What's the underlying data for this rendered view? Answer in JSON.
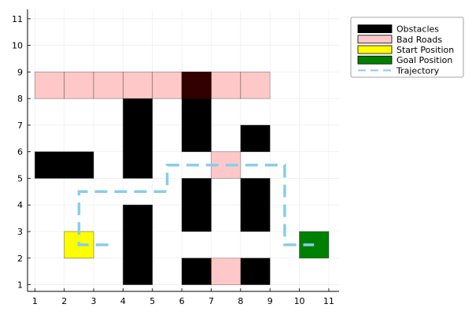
{
  "chart_data": {
    "type": "grid-map",
    "title": "",
    "xlabel": "",
    "ylabel": "",
    "xlim": [
      0.75,
      11.35
    ],
    "ylim": [
      0.75,
      11.35
    ],
    "xticks": [
      1,
      2,
      3,
      4,
      5,
      6,
      7,
      8,
      9,
      10,
      11
    ],
    "yticks": [
      1,
      2,
      3,
      4,
      5,
      6,
      7,
      8,
      9,
      10,
      11
    ],
    "grid": true,
    "legend_position": "top-right",
    "legend": [
      {
        "label": "Obstacles",
        "color": "#000000",
        "kind": "box"
      },
      {
        "label": "Bad Roads",
        "color": "#ffc8c8",
        "kind": "box"
      },
      {
        "label": "Start Position",
        "color": "#ffff00",
        "kind": "box"
      },
      {
        "label": "Goal Position",
        "color": "#008000",
        "kind": "box"
      },
      {
        "label": "Trajectory",
        "color": "#87ceeb",
        "kind": "dash"
      }
    ],
    "colors": {
      "obstacle": "#000000",
      "bad_road": "#ffc8c8",
      "overlap": "#330000",
      "start": "#ffff00",
      "goal": "#008000",
      "trajectory": "#87ceeb"
    },
    "obstacles": [
      {
        "x0": 1,
        "y0": 5,
        "x1": 3,
        "y1": 6
      },
      {
        "x0": 4,
        "y0": 5,
        "x1": 5,
        "y1": 8
      },
      {
        "x0": 4,
        "y0": 1,
        "x1": 5,
        "y1": 4
      },
      {
        "x0": 6,
        "y0": 6,
        "x1": 7,
        "y1": 9
      },
      {
        "x0": 6,
        "y0": 3,
        "x1": 7,
        "y1": 5
      },
      {
        "x0": 6,
        "y0": 1,
        "x1": 7,
        "y1": 2
      },
      {
        "x0": 8,
        "y0": 6,
        "x1": 9,
        "y1": 7
      },
      {
        "x0": 8,
        "y0": 3,
        "x1": 9,
        "y1": 5
      },
      {
        "x0": 8,
        "y0": 1,
        "x1": 9,
        "y1": 2
      }
    ],
    "bad_roads": [
      {
        "x0": 1,
        "y0": 8,
        "x1": 2,
        "y1": 9
      },
      {
        "x0": 2,
        "y0": 8,
        "x1": 3,
        "y1": 9
      },
      {
        "x0": 3,
        "y0": 8,
        "x1": 4,
        "y1": 9
      },
      {
        "x0": 4,
        "y0": 8,
        "x1": 5,
        "y1": 9
      },
      {
        "x0": 5,
        "y0": 8,
        "x1": 6,
        "y1": 9
      },
      {
        "x0": 6,
        "y0": 8,
        "x1": 7,
        "y1": 9
      },
      {
        "x0": 7,
        "y0": 8,
        "x1": 8,
        "y1": 9
      },
      {
        "x0": 8,
        "y0": 8,
        "x1": 9,
        "y1": 9
      },
      {
        "x0": 7,
        "y0": 5,
        "x1": 8,
        "y1": 6
      },
      {
        "x0": 7,
        "y0": 1,
        "x1": 8,
        "y1": 2
      }
    ],
    "start": {
      "x0": 2,
      "y0": 2,
      "x1": 3,
      "y1": 3
    },
    "goal": {
      "x0": 10,
      "y0": 2,
      "x1": 11,
      "y1": 3
    },
    "trajectory": {
      "x": [
        3.5,
        2.5,
        2.5,
        5.5,
        5.5,
        9.5,
        9.5,
        10.5
      ],
      "y": [
        2.5,
        2.5,
        4.5,
        4.5,
        5.5,
        5.5,
        2.5,
        2.5
      ]
    }
  }
}
